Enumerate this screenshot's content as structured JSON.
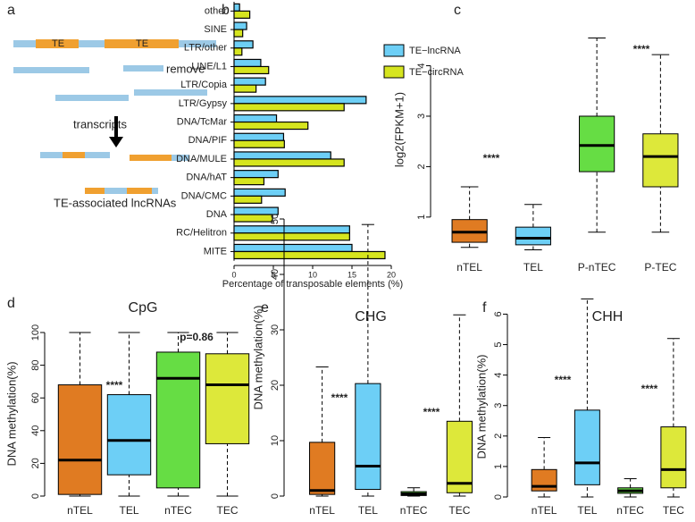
{
  "diagram": {
    "panel_label": "a",
    "te_labels": [
      "TE",
      "TE"
    ],
    "remove": "remove",
    "transcripts": "transcripts",
    "caption": "TE-associated  lncRNAs"
  },
  "chart_data": [
    {
      "type": "hbar",
      "panel_label": "b",
      "xlabel": "Percentage of transposable elements (%)",
      "categories": [
        "other",
        "SINE",
        "LTR/other",
        "LINE/L1",
        "LTR/Copia",
        "LTR/Gypsy",
        "DNA/TcMar",
        "DNA/PIF",
        "DNA/MULE",
        "DNA/hAT",
        "DNA/CMC",
        "DNA",
        "RC/Helitron",
        "MITE"
      ],
      "series": [
        {
          "name": "TE−lncRNA",
          "color": "#6dcff6",
          "values": [
            0.7,
            1.6,
            2.4,
            3.4,
            4.0,
            16.8,
            5.4,
            6.3,
            12.3,
            5.6,
            6.5,
            5.6,
            14.7,
            15.0
          ]
        },
        {
          "name": "TE−circRNA",
          "color": "#d6e51f",
          "values": [
            2.0,
            1.1,
            1.0,
            4.4,
            2.8,
            14.0,
            9.4,
            6.4,
            14.0,
            3.8,
            3.5,
            4.9,
            14.7,
            19.2
          ]
        }
      ],
      "xlim": [
        0,
        20
      ],
      "xticks": [
        0,
        5,
        10,
        15,
        20
      ],
      "legend": "top-right"
    },
    {
      "type": "box",
      "panel_label": "c",
      "ylabel": "log2(FPKM+1)",
      "categories": [
        "nTEL",
        "TEL",
        "P-nTEC",
        "P-TEC"
      ],
      "colors": [
        "#e07b22",
        "#6dcff6",
        "#66dd44",
        "#dde83a"
      ],
      "boxes": [
        {
          "whislo": 0.4,
          "q1": 0.5,
          "med": 0.7,
          "q3": 0.95,
          "whishi": 1.6
        },
        {
          "whislo": 0.35,
          "q1": 0.45,
          "med": 0.58,
          "q3": 0.8,
          "whishi": 1.25
        },
        {
          "whislo": 0.7,
          "q1": 1.9,
          "med": 2.42,
          "q3": 3.0,
          "whishi": 4.55
        },
        {
          "whislo": 0.7,
          "q1": 1.6,
          "med": 2.2,
          "q3": 2.65,
          "whishi": 4.22
        }
      ],
      "ylim": [
        0.2,
        5.25
      ],
      "yticks": [
        1,
        2,
        3,
        4
      ],
      "annotations": [
        "****",
        "****"
      ]
    },
    {
      "type": "box",
      "panel_label": "d",
      "title": "CpG",
      "ylabel": "DNA methylation(%)",
      "categories": [
        "nTEL",
        "TEL",
        "nTEC",
        "TEC"
      ],
      "colors": [
        "#e07b22",
        "#6dcff6",
        "#66dd44",
        "#dde83a"
      ],
      "boxes": [
        {
          "whislo": 0,
          "q1": 1,
          "med": 22,
          "q3": 68,
          "whishi": 100
        },
        {
          "whislo": 0,
          "q1": 13,
          "med": 34,
          "q3": 62,
          "whishi": 100
        },
        {
          "whislo": 0,
          "q1": 5,
          "med": 72,
          "q3": 88,
          "whishi": 100
        },
        {
          "whislo": 0,
          "q1": 32,
          "med": 68,
          "q3": 87,
          "whishi": 100
        }
      ],
      "ylim": [
        0,
        100
      ],
      "yticks": [
        0,
        20,
        40,
        60,
        80,
        100
      ],
      "annotations": [
        "****",
        "p=0.86"
      ]
    },
    {
      "type": "box",
      "panel_label": "e",
      "title": "CHG",
      "ylabel": "DNA methylation(%)",
      "categories": [
        "nTEL",
        "TEL",
        "nTEC",
        "TEC"
      ],
      "colors": [
        "#e07b22",
        "#6dcff6",
        "#66dd44",
        "#dde83a"
      ],
      "boxes": [
        {
          "whislo": 0,
          "q1": 0.3,
          "med": 1,
          "q3": 9.7,
          "whishi": 23.3
        },
        {
          "whislo": 0,
          "q1": 1.2,
          "med": 5.4,
          "q3": 20.3,
          "whishi": 49
        },
        {
          "whislo": 0,
          "q1": 0.1,
          "med": 0.4,
          "q3": 0.8,
          "whishi": 1.5
        },
        {
          "whislo": 0,
          "q1": 0.6,
          "med": 2.3,
          "q3": 13.5,
          "whishi": 32.7
        }
      ],
      "ylim": [
        0,
        50
      ],
      "yticks": [
        0,
        10,
        20,
        30,
        40,
        50
      ],
      "annotations": [
        "****",
        "****"
      ]
    },
    {
      "type": "box",
      "panel_label": "f",
      "title": "CHH",
      "ylabel": "DNA methylation(%)",
      "categories": [
        "nTEL",
        "TEL",
        "nTEC",
        "TEC"
      ],
      "colors": [
        "#e07b22",
        "#6dcff6",
        "#66dd44",
        "#dde83a"
      ],
      "boxes": [
        {
          "whislo": 0,
          "q1": 0.2,
          "med": 0.35,
          "q3": 0.9,
          "whishi": 1.95
        },
        {
          "whislo": 0,
          "q1": 0.4,
          "med": 1.12,
          "q3": 2.85,
          "whishi": 6.5
        },
        {
          "whislo": 0,
          "q1": 0.12,
          "med": 0.2,
          "q3": 0.3,
          "whishi": 0.6
        },
        {
          "whislo": 0,
          "q1": 0.3,
          "med": 0.9,
          "q3": 2.3,
          "whishi": 5.2
        }
      ],
      "ylim": [
        0,
        6.6
      ],
      "yticks": [
        0,
        1,
        2,
        3,
        4,
        5,
        6
      ],
      "annotations": [
        "****",
        "****"
      ]
    }
  ]
}
